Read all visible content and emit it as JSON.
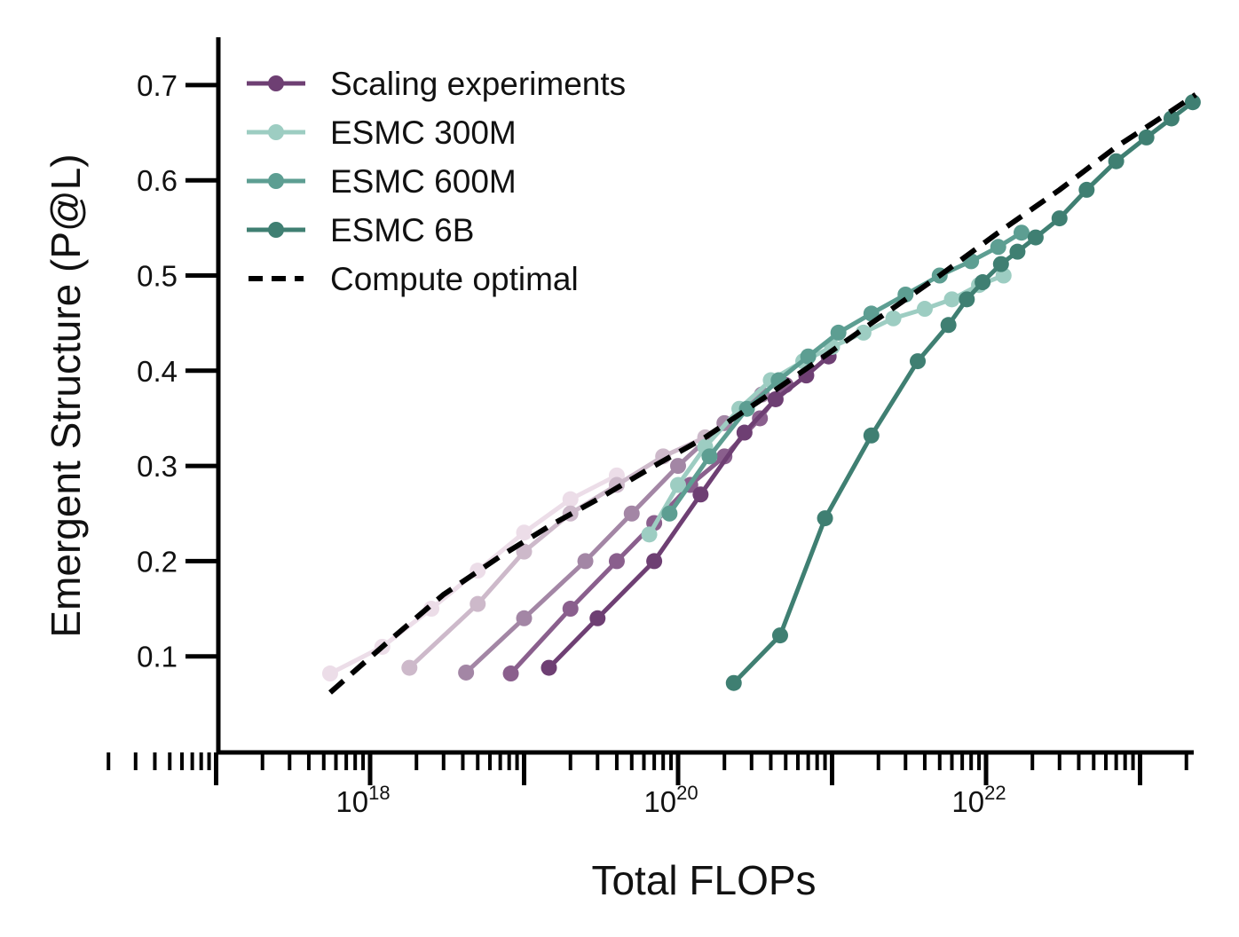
{
  "chart_data": {
    "type": "line",
    "xlabel": "Total FLOPs",
    "ylabel": "Emergent Structure (P@L)",
    "x_scale": "log",
    "xlim": [
      1.5e+16,
      2.6e+23
    ],
    "ylim": [
      0.0,
      0.75
    ],
    "x_ticks": [
      1e+18,
      1e+20,
      1e+22
    ],
    "x_tick_labels": [
      {
        "base": "10",
        "exp": "18"
      },
      {
        "base": "10",
        "exp": "20"
      },
      {
        "base": "10",
        "exp": "22"
      }
    ],
    "y_ticks": [
      0.1,
      0.2,
      0.3,
      0.4,
      0.5,
      0.6,
      0.7
    ],
    "y_tick_labels": [
      "0.1",
      "0.2",
      "0.3",
      "0.4",
      "0.5",
      "0.6",
      "0.7"
    ],
    "grid": false,
    "legend_position": "top-left",
    "legend": [
      {
        "label": "Scaling experiments",
        "color": "#6e3f73",
        "style": "line-marker"
      },
      {
        "label": "ESMC 300M",
        "color": "#9dcdc2",
        "style": "line-marker"
      },
      {
        "label": "ESMC 600M",
        "color": "#5d9e92",
        "style": "line-marker"
      },
      {
        "label": "ESMC 6B",
        "color": "#3f7f72",
        "style": "line-marker"
      },
      {
        "label": "Compute optimal",
        "color": "#000000",
        "style": "dashed"
      }
    ],
    "series": [
      {
        "color": "#ecdde8",
        "group": "scaling",
        "x": [
          5.5e+17,
          1.2e+18,
          2.5e+18,
          5e+18,
          1e+19,
          2e+19,
          4e+19
        ],
        "y": [
          0.082,
          0.11,
          0.15,
          0.19,
          0.23,
          0.265,
          0.29
        ]
      },
      {
        "color": "#cdb9ca",
        "group": "scaling",
        "x": [
          1.8e+18,
          5e+18,
          1e+19,
          2e+19,
          4e+19,
          8e+19,
          1.5e+20
        ],
        "y": [
          0.088,
          0.155,
          0.21,
          0.25,
          0.28,
          0.31,
          0.33
        ]
      },
      {
        "color": "#a386a5",
        "group": "scaling",
        "x": [
          4.2e+18,
          1e+19,
          2.5e+19,
          5e+19,
          1e+20,
          2e+20,
          3.5e+20
        ],
        "y": [
          0.083,
          0.14,
          0.2,
          0.25,
          0.3,
          0.345,
          0.375
        ]
      },
      {
        "color": "#8a5f8d",
        "group": "scaling",
        "x": [
          8.2e+18,
          2e+19,
          4e+19,
          7e+19,
          1.2e+20,
          2e+20,
          3.4e+20,
          5e+20
        ],
        "y": [
          0.082,
          0.15,
          0.2,
          0.24,
          0.28,
          0.31,
          0.35,
          0.385
        ]
      },
      {
        "color": "#6e3f73",
        "group": "scaling",
        "x": [
          1.45e+19,
          3e+19,
          7e+19,
          1.4e+20,
          2.7e+20,
          4.3e+20,
          6.8e+20,
          9.5e+20
        ],
        "y": [
          0.088,
          0.14,
          0.2,
          0.27,
          0.335,
          0.37,
          0.395,
          0.415
        ]
      },
      {
        "name": "ESMC 300M",
        "color": "#9dcdc2",
        "x": [
          6.5e+19,
          1e+20,
          1.5e+20,
          2.5e+20,
          4e+20,
          6.5e+20,
          1e+21,
          1.6e+21,
          2.5e+21,
          4e+21,
          6e+21,
          9e+21,
          1.3e+22
        ],
        "y": [
          0.228,
          0.28,
          0.32,
          0.36,
          0.39,
          0.41,
          0.425,
          0.44,
          0.455,
          0.465,
          0.475,
          0.49,
          0.5
        ]
      },
      {
        "name": "ESMC 600M",
        "color": "#5d9e92",
        "x": [
          8.8e+19,
          1.6e+20,
          2.8e+20,
          4.5e+20,
          7e+20,
          1.1e+21,
          1.8e+21,
          3e+21,
          5e+21,
          8e+21,
          1.2e+22,
          1.7e+22
        ],
        "y": [
          0.25,
          0.31,
          0.36,
          0.39,
          0.415,
          0.44,
          0.46,
          0.48,
          0.5,
          0.515,
          0.53,
          0.545
        ]
      },
      {
        "name": "ESMC 6B",
        "color": "#3f7f72",
        "x": [
          2.3e+20,
          4.6e+20,
          9e+20,
          1.8e+21,
          3.6e+21,
          5.7e+21,
          7.5e+21,
          9.5e+21,
          1.25e+22,
          1.6e+22,
          2.1e+22,
          3e+22,
          4.5e+22,
          7e+22,
          1.1e+23,
          1.6e+23,
          2.2e+23
        ],
        "y": [
          0.072,
          0.122,
          0.245,
          0.332,
          0.41,
          0.448,
          0.475,
          0.493,
          0.512,
          0.525,
          0.54,
          0.56,
          0.59,
          0.62,
          0.645,
          0.665,
          0.682
        ]
      }
    ],
    "compute_optimal": {
      "color": "#000000",
      "style": "dashed",
      "x": [
        5.5e+17,
        1.3e+18,
        3e+18,
        7e+18,
        1.5e+19,
        3e+19,
        7e+19,
        1.5e+20,
        3.5e+20,
        8e+20,
        2e+21,
        5e+21,
        1.2e+22,
        3e+22,
        7e+22,
        1.5e+23,
        2.3e+23
      ],
      "y": [
        0.062,
        0.115,
        0.165,
        0.205,
        0.238,
        0.265,
        0.3,
        0.33,
        0.37,
        0.41,
        0.455,
        0.5,
        0.545,
        0.59,
        0.635,
        0.67,
        0.69
      ]
    }
  }
}
